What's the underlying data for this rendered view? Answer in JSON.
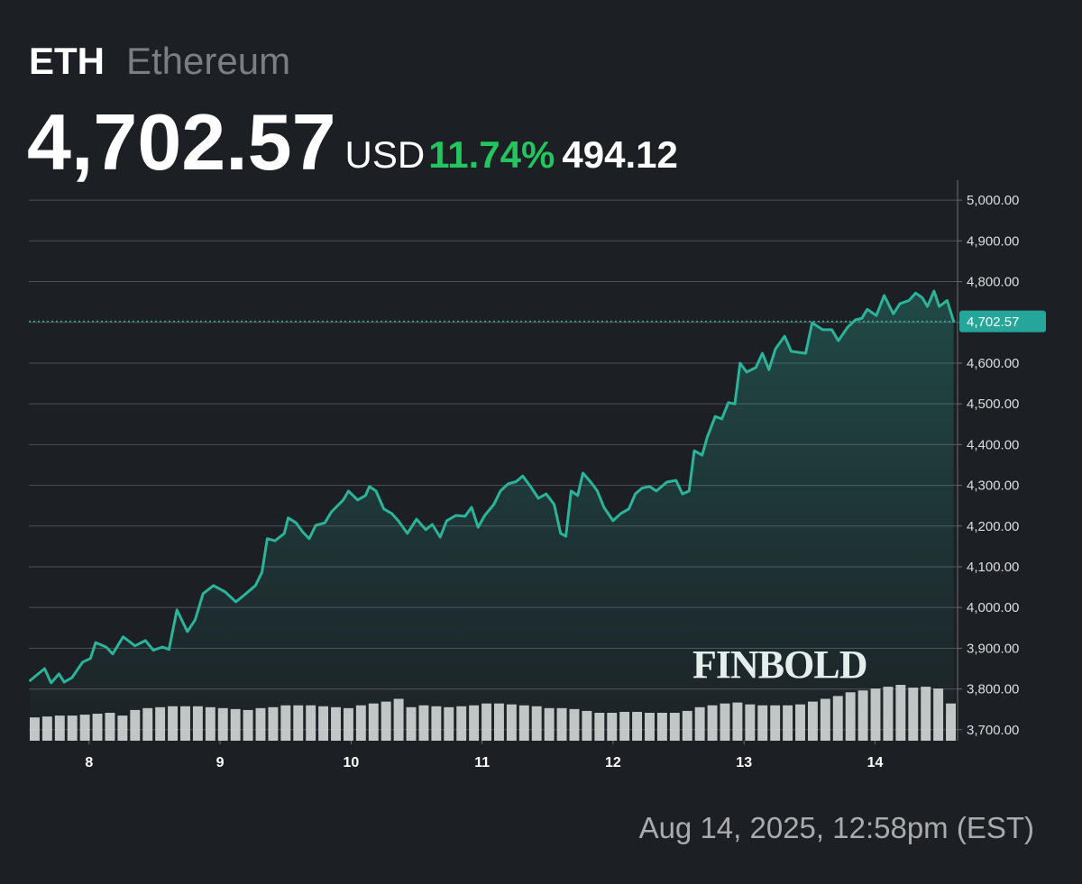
{
  "header": {
    "symbol": "ETH",
    "name": "Ethereum",
    "price": "4,702.57",
    "currency": "USD",
    "change_pct": "11.74%",
    "change": "494.12"
  },
  "watermark": "FINBOLD",
  "footer": "Aug 14, 2025, 12:58pm (EST)",
  "chart_data": {
    "type": "line",
    "xlim": [
      7.54,
      14.63
    ],
    "xticks": [
      8,
      9,
      10,
      11,
      12,
      13,
      14
    ],
    "ylim": [
      3673,
      5049
    ],
    "yticks": [
      {
        "value": 3700,
        "label": "3,700.00"
      },
      {
        "value": 3800,
        "label": "3,800.00"
      },
      {
        "value": 3900,
        "label": "3,900.00"
      },
      {
        "value": 4000,
        "label": "4,000.00"
      },
      {
        "value": 4100,
        "label": "4,100.00"
      },
      {
        "value": 4200,
        "label": "4,200.00"
      },
      {
        "value": 4300,
        "label": "4,300.00"
      },
      {
        "value": 4400,
        "label": "4,400.00"
      },
      {
        "value": 4500,
        "label": "4,500.00"
      },
      {
        "value": 4600,
        "label": "4,600.00"
      },
      {
        "value": 4700,
        "label": "4,700.00"
      },
      {
        "value": 4800,
        "label": "4,800.00"
      },
      {
        "value": 4900,
        "label": "4,900.00"
      },
      {
        "value": 5000,
        "label": "5,000.00"
      }
    ],
    "grid": true,
    "current": {
      "value": 4702.57,
      "label": "4,702.57"
    },
    "x": [
      7.55,
      7.66,
      7.71,
      7.77,
      7.81,
      7.87,
      7.95,
      8.01,
      8.05,
      8.13,
      8.18,
      8.26,
      8.35,
      8.43,
      8.49,
      8.56,
      8.61,
      8.67,
      8.75,
      8.81,
      8.87,
      8.95,
      9.04,
      9.12,
      9.19,
      9.27,
      9.32,
      9.36,
      9.42,
      9.49,
      9.52,
      9.58,
      9.63,
      9.68,
      9.73,
      9.8,
      9.85,
      9.94,
      9.98,
      10.05,
      10.11,
      10.14,
      10.19,
      10.25,
      10.31,
      10.36,
      10.43,
      10.5,
      10.57,
      10.62,
      10.68,
      10.73,
      10.8,
      10.87,
      10.92,
      10.97,
      11.02,
      11.09,
      11.14,
      11.2,
      11.26,
      11.31,
      11.37,
      11.43,
      11.49,
      11.55,
      11.6,
      11.64,
      11.68,
      11.73,
      11.77,
      11.83,
      11.88,
      11.93,
      12.0,
      12.06,
      12.12,
      12.17,
      12.22,
      12.28,
      12.33,
      12.41,
      12.48,
      12.53,
      12.58,
      12.62,
      12.68,
      12.72,
      12.78,
      12.83,
      12.88,
      12.93,
      12.97,
      13.02,
      13.09,
      13.14,
      13.19,
      13.24,
      13.31,
      13.36,
      13.47,
      13.52,
      13.6,
      13.67,
      13.72,
      13.79,
      13.85,
      13.9,
      13.94,
      14.01,
      14.07,
      14.14,
      14.19,
      14.26,
      14.31,
      14.36,
      14.4,
      14.45,
      14.49,
      14.55,
      14.6
    ],
    "series": [
      {
        "name": "ETH",
        "color": "#2bb49a",
        "values": [
          3821,
          3850,
          3815,
          3837,
          3817,
          3828,
          3866,
          3875,
          3914,
          3903,
          3886,
          3928,
          3906,
          3919,
          3895,
          3903,
          3897,
          3994,
          3941,
          3970,
          4034,
          4054,
          4038,
          4014,
          4032,
          4054,
          4087,
          4169,
          4164,
          4182,
          4220,
          4208,
          4186,
          4169,
          4202,
          4208,
          4235,
          4264,
          4286,
          4264,
          4275,
          4297,
          4286,
          4242,
          4231,
          4213,
          4182,
          4217,
          4191,
          4204,
          4173,
          4213,
          4226,
          4224,
          4246,
          4197,
          4226,
          4253,
          4286,
          4304,
          4309,
          4323,
          4297,
          4268,
          4279,
          4253,
          4182,
          4175,
          4286,
          4275,
          4330,
          4308,
          4286,
          4246,
          4213,
          4231,
          4242,
          4279,
          4293,
          4297,
          4286,
          4308,
          4312,
          4279,
          4286,
          4385,
          4374,
          4419,
          4469,
          4463,
          4503,
          4500,
          4600,
          4578,
          4589,
          4624,
          4584,
          4635,
          4666,
          4629,
          4624,
          4699,
          4682,
          4682,
          4655,
          4688,
          4706,
          4710,
          4732,
          4717,
          4766,
          4721,
          4746,
          4754,
          4772,
          4761,
          4739,
          4777,
          4739,
          4754,
          4702.57
        ]
      }
    ],
    "volume": {
      "color": "#d9d9d9",
      "values": [
        25,
        26,
        27,
        27,
        28,
        29,
        30,
        27,
        33,
        35,
        36,
        37,
        37,
        37,
        36,
        35,
        34,
        33,
        35,
        36,
        38,
        38,
        38,
        37,
        36,
        35,
        38,
        40,
        42,
        45,
        36,
        38,
        37,
        36,
        37,
        38,
        40,
        40,
        39,
        38,
        37,
        35,
        35,
        34,
        32,
        30,
        30,
        31,
        31,
        30,
        30,
        30,
        32,
        36,
        38,
        40,
        41,
        39,
        38,
        38,
        38,
        39,
        42,
        45,
        48,
        52,
        54,
        56,
        58,
        60,
        57,
        58,
        56,
        40
      ]
    }
  }
}
